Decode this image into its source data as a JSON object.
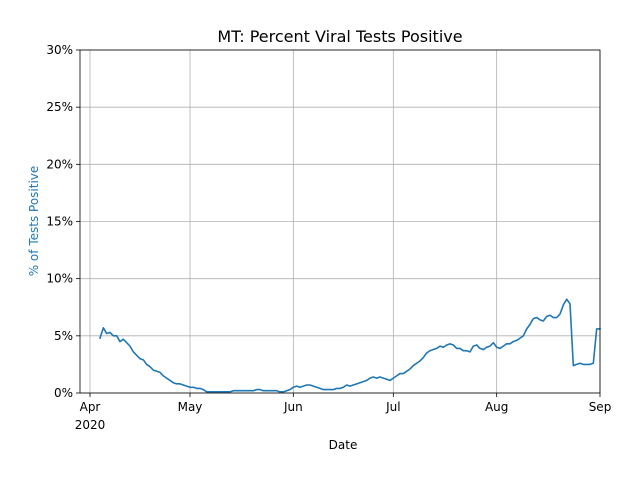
{
  "chart_data": {
    "type": "line",
    "title": "MT: Percent Viral Tests Positive",
    "xlabel": "Date",
    "ylabel": "% of Tests Positive",
    "ylabel_color": "#1f77b4",
    "x_start": "2020-03-29",
    "x_end": "2020-09-01",
    "ylim": [
      0,
      30
    ],
    "grid": true,
    "x_ticks": [
      {
        "date": "2020-04-01",
        "label": "Apr",
        "sublabel": "2020"
      },
      {
        "date": "2020-05-01",
        "label": "May",
        "sublabel": ""
      },
      {
        "date": "2020-06-01",
        "label": "Jun",
        "sublabel": ""
      },
      {
        "date": "2020-07-01",
        "label": "Jul",
        "sublabel": ""
      },
      {
        "date": "2020-08-01",
        "label": "Aug",
        "sublabel": ""
      },
      {
        "date": "2020-09-01",
        "label": "Sep",
        "sublabel": ""
      }
    ],
    "y_ticks": [
      {
        "value": 0,
        "label": "0%"
      },
      {
        "value": 5,
        "label": "5%"
      },
      {
        "value": 10,
        "label": "10%"
      },
      {
        "value": 15,
        "label": "15%"
      },
      {
        "value": 20,
        "label": "20%"
      },
      {
        "value": 25,
        "label": "25%"
      },
      {
        "value": 30,
        "label": "30%"
      }
    ],
    "series": [
      {
        "color": "#1f77b4",
        "start_date": "2020-04-04",
        "values": [
          4.8,
          5.7,
          5.2,
          5.3,
          5.0,
          5.0,
          4.5,
          4.7,
          4.4,
          4.1,
          3.6,
          3.3,
          3.0,
          2.9,
          2.5,
          2.3,
          2.0,
          1.9,
          1.8,
          1.5,
          1.3,
          1.1,
          0.9,
          0.8,
          0.8,
          0.7,
          0.6,
          0.5,
          0.5,
          0.4,
          0.4,
          0.3,
          0.1,
          0.1,
          0.1,
          0.1,
          0.1,
          0.1,
          0.1,
          0.1,
          0.2,
          0.2,
          0.2,
          0.2,
          0.2,
          0.2,
          0.2,
          0.3,
          0.3,
          0.2,
          0.2,
          0.2,
          0.2,
          0.2,
          0.1,
          0.1,
          0.2,
          0.3,
          0.5,
          0.6,
          0.5,
          0.6,
          0.7,
          0.7,
          0.6,
          0.5,
          0.4,
          0.3,
          0.3,
          0.3,
          0.3,
          0.4,
          0.4,
          0.5,
          0.7,
          0.6,
          0.7,
          0.8,
          0.9,
          1.0,
          1.1,
          1.3,
          1.4,
          1.3,
          1.4,
          1.3,
          1.2,
          1.1,
          1.3,
          1.5,
          1.7,
          1.7,
          1.9,
          2.1,
          2.4,
          2.6,
          2.8,
          3.1,
          3.5,
          3.7,
          3.8,
          3.9,
          4.1,
          4.0,
          4.2,
          4.3,
          4.2,
          3.9,
          3.9,
          3.7,
          3.7,
          3.6,
          4.1,
          4.2,
          3.9,
          3.8,
          4.0,
          4.1,
          4.4,
          4.0,
          3.9,
          4.1,
          4.3,
          4.3,
          4.5,
          4.6,
          4.8,
          5.0,
          5.6,
          6.0,
          6.5,
          6.6,
          6.4,
          6.3,
          6.7,
          6.8,
          6.6,
          6.6,
          6.9,
          7.7,
          8.2,
          7.8,
          2.4,
          2.5,
          2.6,
          2.5,
          2.5,
          2.5,
          2.6,
          5.6,
          5.6
        ]
      }
    ]
  }
}
